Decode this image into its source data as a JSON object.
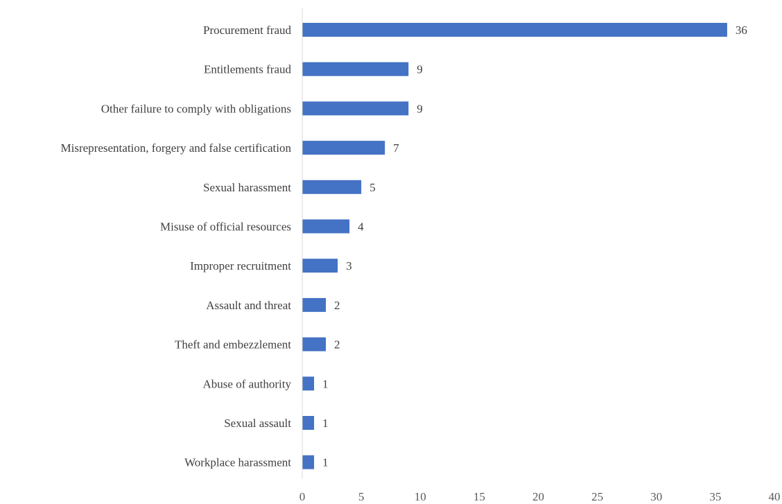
{
  "chart_data": {
    "type": "bar",
    "orientation": "horizontal",
    "categories": [
      "Procurement fraud",
      "Entitlements fraud",
      "Other failure to comply with obligations",
      "Misrepresentation, forgery and false certification",
      "Sexual harassment",
      "Misuse of official resources",
      "Improper recruitment",
      "Assault and threat",
      "Theft and embezzlement",
      "Abuse of authority",
      "Sexual assault",
      "Workplace harassment"
    ],
    "values": [
      36,
      9,
      9,
      7,
      5,
      4,
      3,
      2,
      2,
      1,
      1,
      1
    ],
    "title": "",
    "xlabel": "",
    "ylabel": "",
    "xlim": [
      0,
      40
    ],
    "xticks": [
      0,
      5,
      10,
      15,
      20,
      25,
      30,
      35,
      40
    ],
    "grid": false,
    "data_labels": true,
    "bar_color": "#4472C4"
  }
}
